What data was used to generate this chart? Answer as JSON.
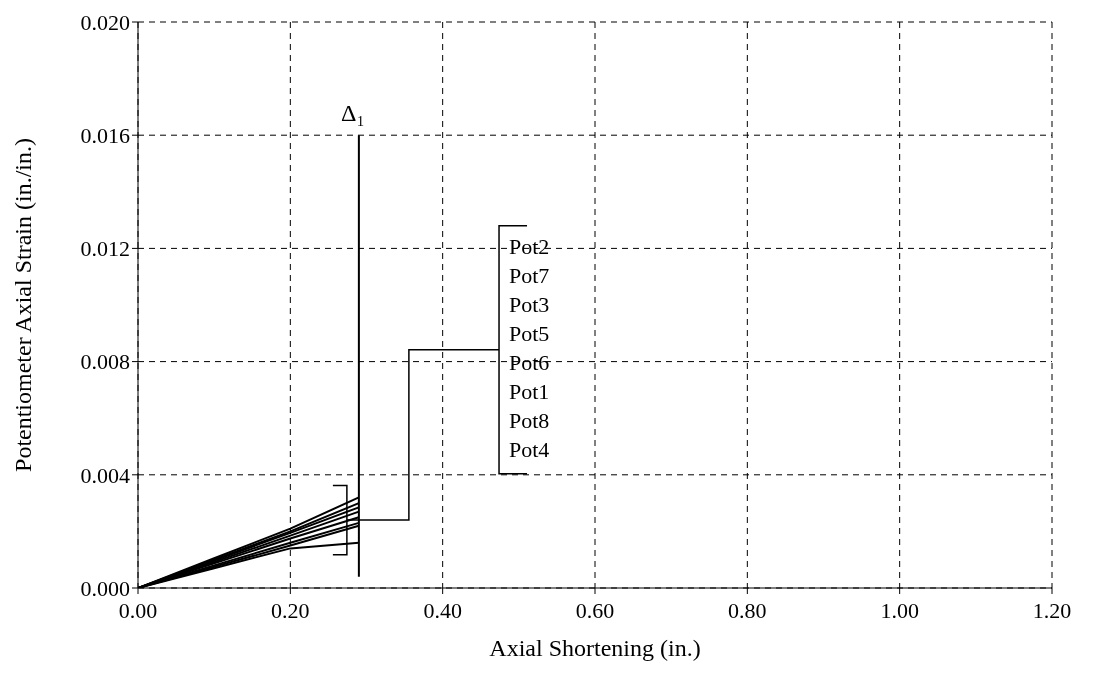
{
  "chart_data": {
    "type": "line",
    "xlabel": "Axial Shortening (in.)",
    "ylabel": "Potentiometer Axial Strain (in./in.)",
    "xlim": [
      0,
      1.2
    ],
    "xticks": [
      {
        "value": 0,
        "label": "0.00"
      },
      {
        "value": 0.2,
        "label": "0.20"
      },
      {
        "value": 0.4,
        "label": "0.40"
      },
      {
        "value": 0.6,
        "label": "0.60"
      },
      {
        "value": 0.8,
        "label": "0.80"
      },
      {
        "value": 1,
        "label": "1.00"
      },
      {
        "value": 1.2,
        "label": "1.20"
      }
    ],
    "ylim": [
      0,
      0.02
    ],
    "yticks": [
      {
        "value": 0,
        "label": "0.000"
      },
      {
        "value": 0.004,
        "label": "0.004"
      },
      {
        "value": 0.008,
        "label": "0.008"
      },
      {
        "value": 0.012,
        "label": "0.012"
      },
      {
        "value": 0.016,
        "label": "0.016"
      },
      {
        "value": 0.02,
        "label": "0.020"
      }
    ],
    "grid": true,
    "legend": "center",
    "line_style": "solid",
    "marker": "none",
    "x": [
      0,
      0.1,
      0.2,
      0.29
    ],
    "series": [
      {
        "name": "Pot2",
        "color": "#000000",
        "values": [
          0,
          0.00105,
          0.0021,
          0.0032
        ]
      },
      {
        "name": "Pot7",
        "color": "#000000",
        "values": [
          0,
          0.001,
          0.002,
          0.003
        ]
      },
      {
        "name": "Pot3",
        "color": "#000000",
        "values": [
          0,
          0.00097,
          0.00195,
          0.00285
        ]
      },
      {
        "name": "Pot5",
        "color": "#000000",
        "values": [
          0,
          0.00092,
          0.00185,
          0.0027
        ]
      },
      {
        "name": "Pot6",
        "color": "#000000",
        "values": [
          0,
          0.00087,
          0.00175,
          0.0025
        ]
      },
      {
        "name": "Pot1",
        "color": "#000000",
        "values": [
          0,
          0.0008,
          0.0016,
          0.0023
        ]
      },
      {
        "name": "Pot8",
        "color": "#000000",
        "values": [
          0,
          0.00075,
          0.0015,
          0.0022
        ]
      },
      {
        "name": "Pot4",
        "color": "#000000",
        "values": [
          0,
          0.0007,
          0.0014,
          0.0016
        ]
      }
    ],
    "annotations": [
      "Δ₁"
    ]
  }
}
